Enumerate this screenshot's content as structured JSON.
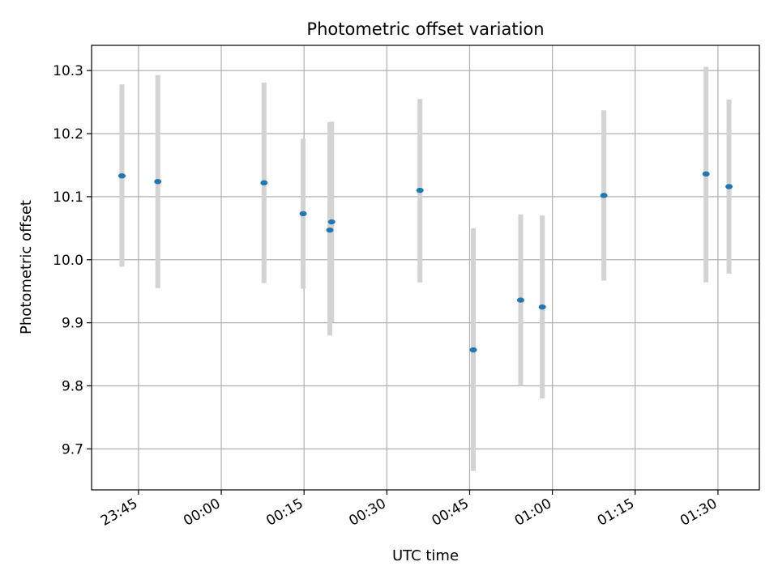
{
  "chart_data": {
    "type": "scatter",
    "title": "Photometric offset variation",
    "xlabel": "UTC time",
    "ylabel": "Photometric offset",
    "x_range": [
      "23:36:30",
      "01:37:30"
    ],
    "ylim": [
      9.635,
      10.34
    ],
    "grid": true,
    "x_ticks": [
      "23:45",
      "00:00",
      "00:15",
      "00:30",
      "00:45",
      "01:00",
      "01:15",
      "01:30"
    ],
    "y_ticks": [
      "9.7",
      "9.8",
      "9.9",
      "10.0",
      "10.1",
      "10.2",
      "10.3"
    ],
    "colors": {
      "marker": "#1f77b4",
      "errorbar": "#d3d3d3",
      "grid": "#b0b0b0"
    },
    "points": [
      {
        "time": "23:42:00",
        "y": 10.133,
        "ylow": 9.989,
        "yhigh": 10.278
      },
      {
        "time": "23:48:30",
        "y": 10.124,
        "ylow": 9.955,
        "yhigh": 10.293
      },
      {
        "time": "00:07:45",
        "y": 10.122,
        "ylow": 9.963,
        "yhigh": 10.281
      },
      {
        "time": "00:14:50",
        "y": 10.073,
        "ylow": 9.954,
        "yhigh": 10.192
      },
      {
        "time": "00:19:40",
        "y": 10.047,
        "ylow": 9.88,
        "yhigh": 10.218
      },
      {
        "time": "00:20:00",
        "y": 10.06,
        "ylow": 9.901,
        "yhigh": 10.219
      },
      {
        "time": "00:36:00",
        "y": 10.11,
        "ylow": 9.964,
        "yhigh": 10.255
      },
      {
        "time": "00:45:40",
        "y": 9.857,
        "ylow": 9.665,
        "yhigh": 10.05
      },
      {
        "time": "00:54:15",
        "y": 9.936,
        "ylow": 9.8,
        "yhigh": 10.072
      },
      {
        "time": "00:58:10",
        "y": 9.925,
        "ylow": 9.78,
        "yhigh": 10.07
      },
      {
        "time": "01:09:20",
        "y": 10.102,
        "ylow": 9.967,
        "yhigh": 10.237
      },
      {
        "time": "01:27:50",
        "y": 10.136,
        "ylow": 9.964,
        "yhigh": 10.306
      },
      {
        "time": "01:32:00",
        "y": 10.116,
        "ylow": 9.978,
        "yhigh": 10.254
      }
    ]
  }
}
